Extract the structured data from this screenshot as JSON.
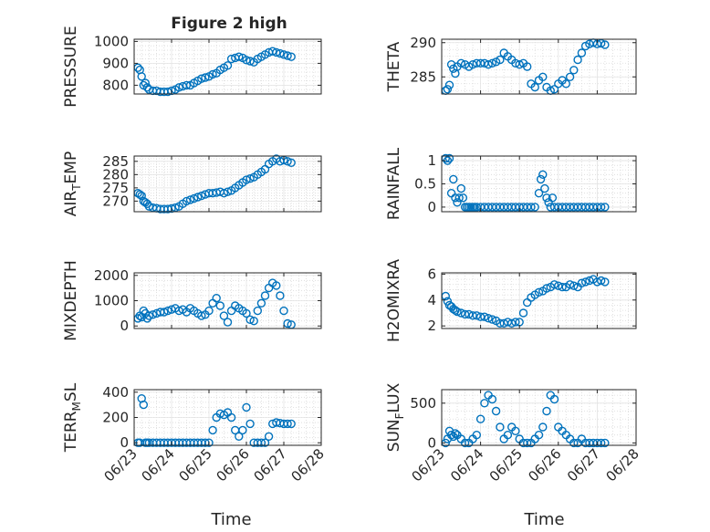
{
  "figure": {
    "title": "Figure 2 high",
    "xlabel": "Time",
    "marker_color": "#0072BD"
  },
  "x_ticks": [
    "06/23",
    "06/24",
    "06/25",
    "06/26",
    "06/27",
    "06/28"
  ],
  "chart_data": [
    {
      "type": "scatter",
      "ylabel": "PRESSURE",
      "ylim": [
        760,
        1010
      ],
      "yticks": [
        800,
        900,
        1000
      ],
      "grid": true,
      "x": [
        0.1,
        0.15,
        0.2,
        0.25,
        0.3,
        0.35,
        0.4,
        0.5,
        0.6,
        0.7,
        0.8,
        0.9,
        1.0,
        1.1,
        1.2,
        1.3,
        1.4,
        1.5,
        1.6,
        1.7,
        1.8,
        1.9,
        2.0,
        2.1,
        2.2,
        2.3,
        2.4,
        2.5,
        2.6,
        2.7,
        2.8,
        2.9,
        3.0,
        3.1,
        3.2,
        3.3,
        3.4,
        3.5,
        3.6,
        3.7,
        3.8,
        3.9,
        4.0,
        4.1,
        4.2
      ],
      "y": [
        880,
        870,
        840,
        800,
        810,
        790,
        780,
        775,
        775,
        770,
        770,
        770,
        775,
        780,
        790,
        795,
        800,
        800,
        810,
        820,
        830,
        835,
        840,
        850,
        855,
        870,
        880,
        890,
        920,
        925,
        930,
        925,
        915,
        910,
        905,
        920,
        930,
        940,
        950,
        955,
        950,
        945,
        940,
        935,
        930
      ]
    },
    {
      "type": "scatter",
      "ylabel": "THETA",
      "ylim": [
        282.5,
        290.5
      ],
      "yticks": [
        285,
        290
      ],
      "grid": true,
      "x": [
        0.1,
        0.15,
        0.2,
        0.25,
        0.3,
        0.35,
        0.4,
        0.5,
        0.6,
        0.7,
        0.8,
        0.9,
        1.0,
        1.1,
        1.2,
        1.3,
        1.4,
        1.5,
        1.6,
        1.7,
        1.8,
        1.9,
        2.0,
        2.1,
        2.2,
        2.3,
        2.4,
        2.5,
        2.6,
        2.7,
        2.8,
        2.9,
        3.0,
        3.1,
        3.2,
        3.3,
        3.4,
        3.5,
        3.6,
        3.7,
        3.8,
        3.9,
        4.0,
        4.1,
        4.2
      ],
      "y": [
        283,
        283.2,
        283.8,
        286.8,
        286.2,
        285.5,
        286.5,
        287,
        286.8,
        286.5,
        286.8,
        287,
        287,
        287,
        286.8,
        287,
        287.2,
        287.5,
        288.5,
        288,
        287.5,
        287,
        286.8,
        287,
        286.5,
        284,
        283.5,
        284.5,
        285,
        283.5,
        283,
        283.2,
        284,
        284.5,
        284,
        285,
        286,
        287.5,
        288.5,
        289.5,
        289.8,
        290,
        289.8,
        289.9,
        289.7
      ]
    },
    {
      "type": "scatter",
      "ylabel": "AIR_TEMP",
      "ylim": [
        266,
        287
      ],
      "yticks": [
        270,
        275,
        280,
        285
      ],
      "grid": true,
      "x": [
        0.1,
        0.15,
        0.2,
        0.25,
        0.3,
        0.35,
        0.4,
        0.5,
        0.6,
        0.7,
        0.8,
        0.9,
        1.0,
        1.1,
        1.2,
        1.3,
        1.4,
        1.5,
        1.6,
        1.7,
        1.8,
        1.9,
        2.0,
        2.1,
        2.2,
        2.3,
        2.4,
        2.5,
        2.6,
        2.7,
        2.8,
        2.9,
        3.0,
        3.1,
        3.2,
        3.3,
        3.4,
        3.5,
        3.6,
        3.7,
        3.8,
        3.9,
        4.0,
        4.1,
        4.2
      ],
      "y": [
        273,
        272.5,
        272,
        270,
        269.5,
        269,
        268,
        267.5,
        267.3,
        267,
        267,
        267,
        267.2,
        267.5,
        268,
        269,
        270,
        270.5,
        271,
        271.5,
        272,
        272.5,
        273,
        273,
        273.2,
        273.5,
        273,
        273.5,
        274,
        275,
        276,
        277,
        278,
        278.5,
        279,
        280,
        281,
        282,
        284,
        285,
        286,
        285,
        285.5,
        285,
        284.5
      ]
    },
    {
      "type": "scatter",
      "ylabel": "RAINFALL",
      "ylim": [
        -0.1,
        1.1
      ],
      "yticks": [
        0,
        0.5,
        1
      ],
      "grid": true,
      "x": [
        0.1,
        0.15,
        0.2,
        0.25,
        0.3,
        0.35,
        0.4,
        0.45,
        0.5,
        0.55,
        0.6,
        0.65,
        0.7,
        0.75,
        0.8,
        0.85,
        0.9,
        1.0,
        1.1,
        1.2,
        1.3,
        1.4,
        1.5,
        1.6,
        1.7,
        1.8,
        1.9,
        2.0,
        2.1,
        2.2,
        2.3,
        2.4,
        2.5,
        2.55,
        2.6,
        2.65,
        2.7,
        2.75,
        2.8,
        2.85,
        2.9,
        3.0,
        3.1,
        3.2,
        3.3,
        3.4,
        3.5,
        3.6,
        3.7,
        3.8,
        3.9,
        4.0,
        4.1,
        4.2
      ],
      "y": [
        1.05,
        1.0,
        1.05,
        0.3,
        0.6,
        0.2,
        0.1,
        0.2,
        0.4,
        0.2,
        0,
        0,
        0,
        0,
        0,
        0,
        0,
        0,
        0,
        0,
        0,
        0,
        0,
        0,
        0,
        0,
        0,
        0,
        0,
        0,
        0,
        0,
        0.3,
        0.6,
        0.7,
        0.4,
        0.2,
        0.1,
        0,
        0.2,
        0,
        0,
        0,
        0,
        0,
        0,
        0,
        0,
        0,
        0,
        0,
        0,
        0,
        0
      ]
    },
    {
      "type": "scatter",
      "ylabel": "MIXDEPTH",
      "ylim": [
        -100,
        2100
      ],
      "yticks": [
        0,
        1000,
        2000
      ],
      "grid": true,
      "x": [
        0.1,
        0.15,
        0.2,
        0.25,
        0.3,
        0.35,
        0.4,
        0.5,
        0.6,
        0.7,
        0.8,
        0.9,
        1.0,
        1.1,
        1.2,
        1.3,
        1.4,
        1.5,
        1.6,
        1.7,
        1.8,
        1.9,
        2.0,
        2.1,
        2.2,
        2.3,
        2.4,
        2.5,
        2.6,
        2.7,
        2.8,
        2.9,
        3.0,
        3.1,
        3.2,
        3.3,
        3.4,
        3.5,
        3.6,
        3.7,
        3.8,
        3.9,
        4.0,
        4.1,
        4.2
      ],
      "y": [
        300,
        400,
        350,
        600,
        500,
        300,
        400,
        450,
        500,
        550,
        550,
        600,
        650,
        700,
        600,
        650,
        550,
        700,
        600,
        500,
        400,
        450,
        600,
        900,
        1100,
        800,
        400,
        150,
        600,
        800,
        700,
        600,
        500,
        250,
        200,
        600,
        900,
        1200,
        1500,
        1700,
        1600,
        1200,
        600,
        100,
        50
      ]
    },
    {
      "type": "scatter",
      "ylabel": "H2OMIXRA",
      "ylim": [
        1.8,
        6.1
      ],
      "yticks": [
        2,
        4,
        6
      ],
      "grid": true,
      "x": [
        0.1,
        0.15,
        0.2,
        0.25,
        0.3,
        0.35,
        0.4,
        0.5,
        0.6,
        0.7,
        0.8,
        0.9,
        1.0,
        1.1,
        1.2,
        1.3,
        1.4,
        1.5,
        1.6,
        1.7,
        1.8,
        1.9,
        2.0,
        2.1,
        2.2,
        2.3,
        2.4,
        2.5,
        2.6,
        2.7,
        2.8,
        2.9,
        3.0,
        3.1,
        3.2,
        3.3,
        3.4,
        3.5,
        3.6,
        3.7,
        3.8,
        3.9,
        4.0,
        4.1,
        4.2
      ],
      "y": [
        4.3,
        3.9,
        3.6,
        3.5,
        3.3,
        3.2,
        3.1,
        3.0,
        2.9,
        2.9,
        2.8,
        2.8,
        2.7,
        2.7,
        2.6,
        2.5,
        2.4,
        2.2,
        2.2,
        2.3,
        2.2,
        2.3,
        2.3,
        3.0,
        3.8,
        4.2,
        4.4,
        4.6,
        4.7,
        4.9,
        5.0,
        5.2,
        5.1,
        5.0,
        5.0,
        5.2,
        5.1,
        5.0,
        5.3,
        5.4,
        5.5,
        5.6,
        5.4,
        5.5,
        5.4
      ]
    },
    {
      "type": "scatter",
      "ylabel": "TERR_MSL",
      "ylim": [
        -20,
        420
      ],
      "yticks": [
        0,
        200,
        400
      ],
      "grid": true,
      "x": [
        0.1,
        0.15,
        0.2,
        0.25,
        0.3,
        0.35,
        0.4,
        0.5,
        0.6,
        0.7,
        0.8,
        0.9,
        1.0,
        1.1,
        1.2,
        1.3,
        1.4,
        1.5,
        1.6,
        1.7,
        1.8,
        1.9,
        2.0,
        2.1,
        2.2,
        2.3,
        2.4,
        2.5,
        2.6,
        2.7,
        2.8,
        2.9,
        3.0,
        3.1,
        3.2,
        3.3,
        3.4,
        3.5,
        3.6,
        3.7,
        3.8,
        3.9,
        4.0,
        4.1,
        4.2
      ],
      "y": [
        0,
        0,
        350,
        300,
        0,
        0,
        0,
        0,
        0,
        0,
        0,
        0,
        0,
        0,
        0,
        0,
        0,
        0,
        0,
        0,
        0,
        0,
        0,
        100,
        200,
        230,
        220,
        240,
        200,
        100,
        50,
        100,
        280,
        150,
        0,
        0,
        0,
        0,
        50,
        150,
        160,
        155,
        150,
        150,
        150
      ]
    },
    {
      "type": "scatter",
      "ylabel": "SUN_FLUX",
      "ylim": [
        -30,
        670
      ],
      "yticks": [
        0,
        500
      ],
      "grid": true,
      "x": [
        0.1,
        0.15,
        0.2,
        0.25,
        0.3,
        0.35,
        0.4,
        0.5,
        0.6,
        0.7,
        0.8,
        0.9,
        1.0,
        1.1,
        1.2,
        1.3,
        1.4,
        1.5,
        1.6,
        1.7,
        1.8,
        1.9,
        2.0,
        2.1,
        2.2,
        2.3,
        2.4,
        2.5,
        2.6,
        2.7,
        2.8,
        2.9,
        3.0,
        3.1,
        3.2,
        3.3,
        3.4,
        3.5,
        3.6,
        3.7,
        3.8,
        3.9,
        4.0,
        4.1,
        4.2
      ],
      "y": [
        0,
        50,
        150,
        100,
        80,
        120,
        100,
        50,
        0,
        0,
        50,
        100,
        300,
        500,
        600,
        550,
        400,
        200,
        50,
        100,
        200,
        150,
        50,
        0,
        0,
        0,
        50,
        100,
        200,
        400,
        600,
        550,
        200,
        150,
        100,
        50,
        0,
        0,
        50,
        0,
        0,
        0,
        0,
        0,
        0
      ]
    }
  ]
}
